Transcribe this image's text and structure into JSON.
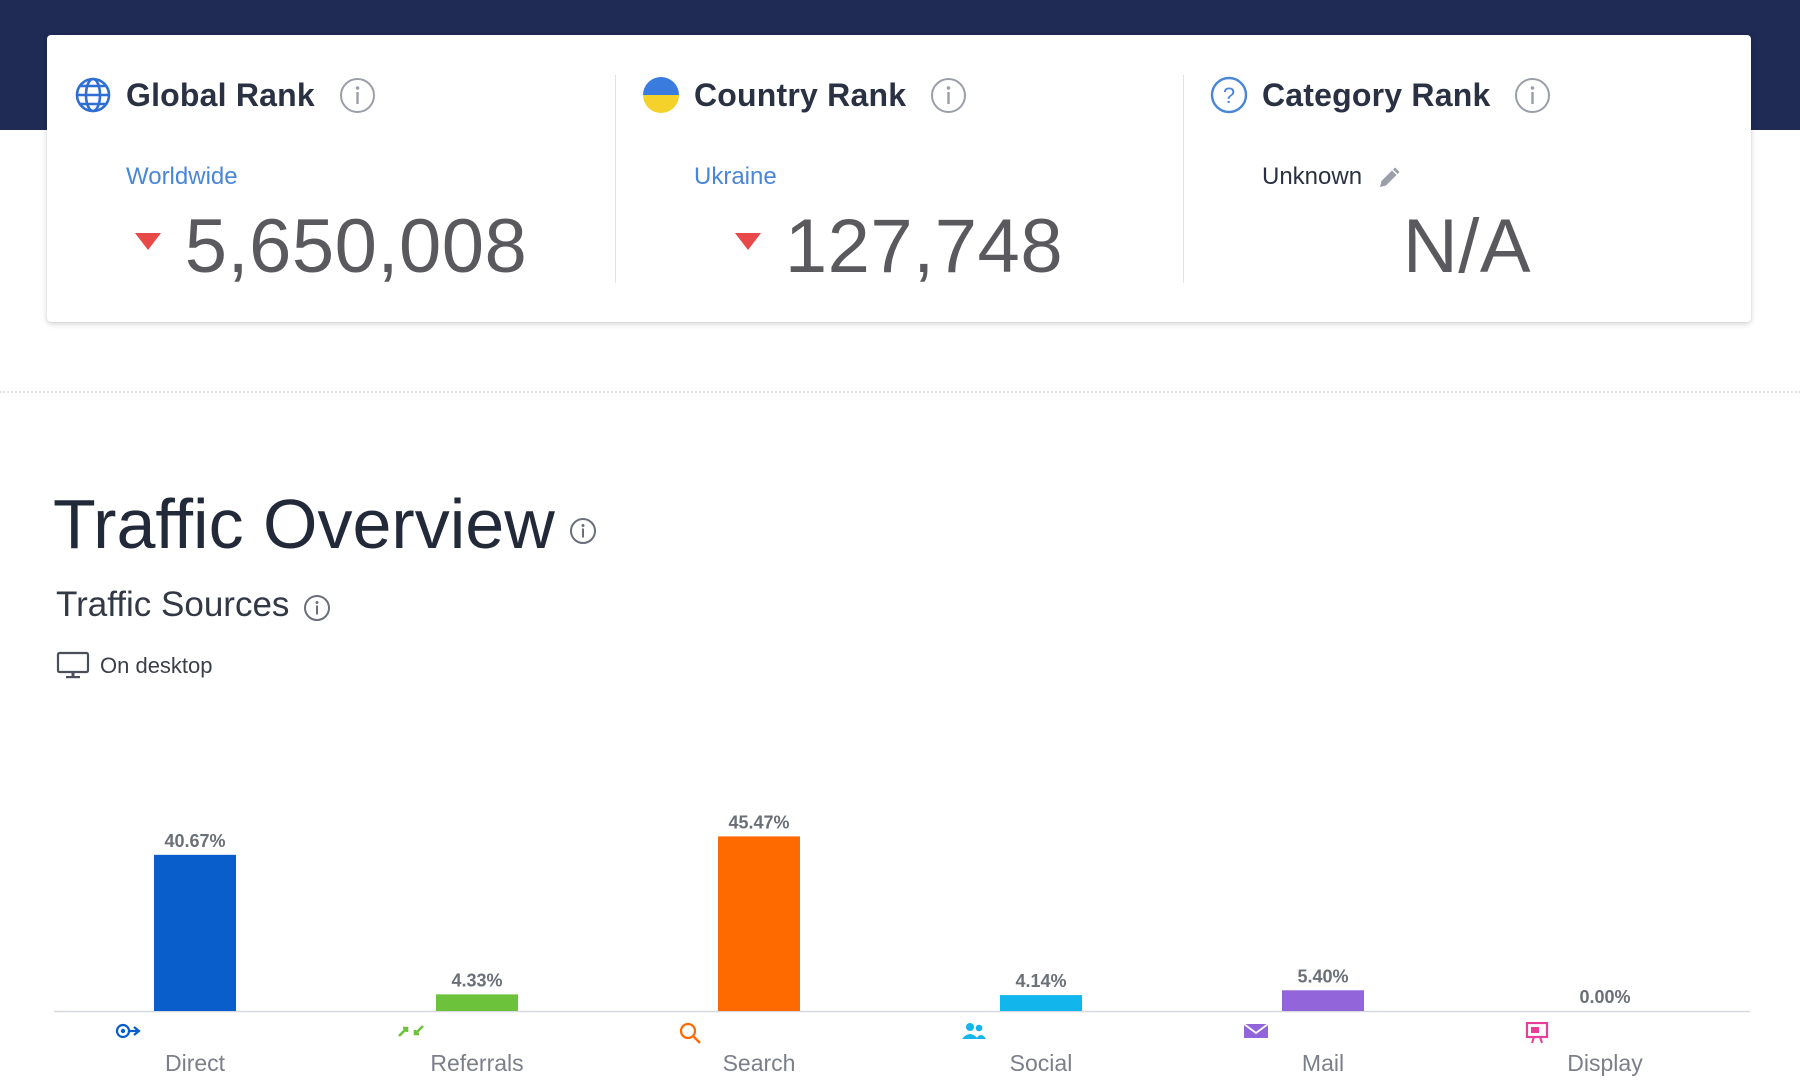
{
  "ranks": {
    "global": {
      "title": "Global Rank",
      "subtitle": "Worldwide",
      "value": "5,650,008",
      "icon": "globe-icon",
      "trend": "down"
    },
    "country": {
      "title": "Country Rank",
      "subtitle": "Ukraine",
      "value": "127,748",
      "icon": "ukraine-flag-icon",
      "trend": "down"
    },
    "category": {
      "title": "Category Rank",
      "subtitle": "Unknown",
      "value": "N/A",
      "icon": "question-icon"
    }
  },
  "traffic": {
    "title": "Traffic Overview",
    "sources_title": "Traffic Sources",
    "device_label": "On desktop"
  },
  "colors": {
    "header_bg": "#1f2a55",
    "trend_down": "#e84848",
    "link": "#4a86d8"
  },
  "chart_data": {
    "type": "bar",
    "categories": [
      "Direct",
      "Referrals",
      "Search",
      "Social",
      "Mail",
      "Display"
    ],
    "values": [
      40.67,
      4.33,
      45.47,
      4.14,
      5.4,
      0.0
    ],
    "labels": [
      "40.67%",
      "4.33%",
      "45.47%",
      "4.14%",
      "5.40%",
      "0.00%"
    ],
    "colors": [
      "#0a5ecb",
      "#6cc23a",
      "#ff6a00",
      "#13b6ec",
      "#9365db",
      "#e83e9a"
    ],
    "icons": [
      "direct-icon",
      "referrals-icon",
      "search-icon",
      "social-icon",
      "mail-icon",
      "display-icon"
    ],
    "ylim": [
      0,
      50
    ]
  }
}
